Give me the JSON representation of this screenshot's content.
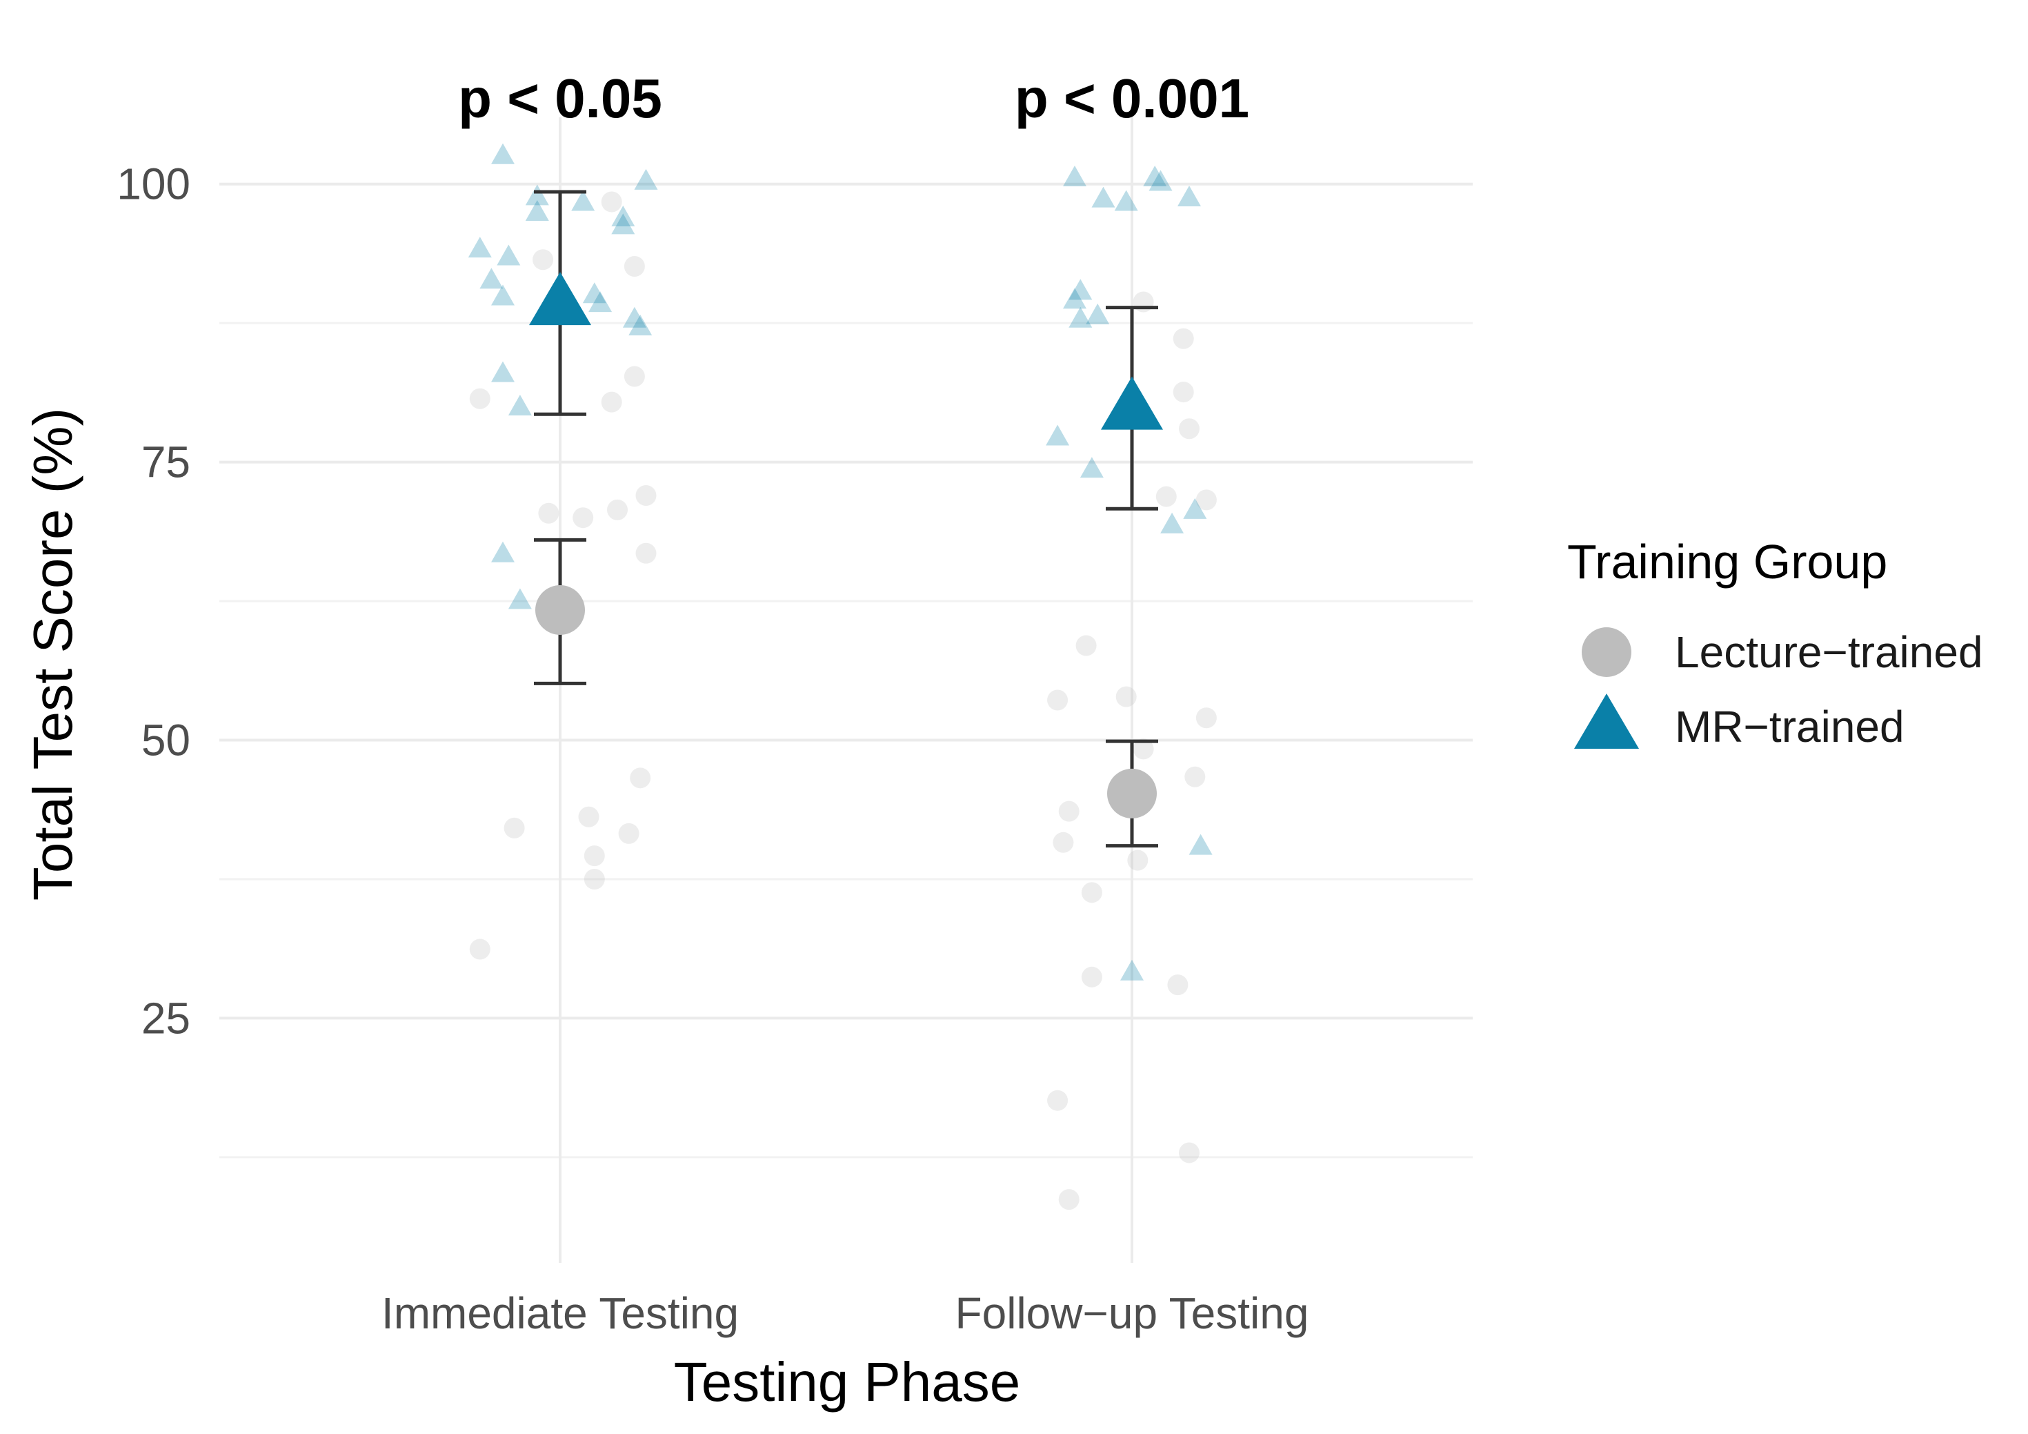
{
  "chart_data": {
    "type": "scatter",
    "title": "",
    "xlabel": "Testing Phase",
    "ylabel": "Total Test Score (%)",
    "categories": [
      "Immediate Testing",
      "Follow−up Testing"
    ],
    "ylim": [
      3,
      106
    ],
    "yticks": [
      25,
      50,
      75,
      100
    ],
    "grid": true,
    "annotations": [
      {
        "category": "Immediate Testing",
        "text": "p < 0.05"
      },
      {
        "category": "Follow−up Testing",
        "text": "p < 0.001"
      }
    ],
    "legend": {
      "title": "Training Group",
      "position": "right",
      "entries": [
        {
          "name": "Lecture−trained",
          "shape": "circle"
        },
        {
          "name": "MR−trained",
          "shape": "triangle"
        }
      ]
    },
    "series": [
      {
        "name": "Lecture−trained",
        "shape": "circle",
        "color": "#bdbdbd",
        "summary": [
          {
            "category": "Immediate Testing",
            "mean": 61.7,
            "lower": 55.1,
            "upper": 68.0
          },
          {
            "category": "Follow−up Testing",
            "mean": 45.2,
            "lower": 40.5,
            "upper": 49.9
          }
        ],
        "points": [
          {
            "category": "Immediate Testing",
            "offset": -0.14,
            "y": 80.7
          },
          {
            "category": "Immediate Testing",
            "offset": 0.09,
            "y": 80.4
          },
          {
            "category": "Immediate Testing",
            "offset": 0.13,
            "y": 82.7
          },
          {
            "category": "Immediate Testing",
            "offset": 0.13,
            "y": 92.6
          },
          {
            "category": "Immediate Testing",
            "offset": -0.03,
            "y": 93.2
          },
          {
            "category": "Immediate Testing",
            "offset": 0.09,
            "y": 98.4
          },
          {
            "category": "Immediate Testing",
            "offset": -0.02,
            "y": 70.4
          },
          {
            "category": "Immediate Testing",
            "offset": 0.04,
            "y": 70.0
          },
          {
            "category": "Immediate Testing",
            "offset": 0.1,
            "y": 70.7
          },
          {
            "category": "Immediate Testing",
            "offset": 0.15,
            "y": 72.0
          },
          {
            "category": "Immediate Testing",
            "offset": 0.15,
            "y": 66.8
          },
          {
            "category": "Immediate Testing",
            "offset": -0.08,
            "y": 42.1
          },
          {
            "category": "Immediate Testing",
            "offset": 0.05,
            "y": 43.1
          },
          {
            "category": "Immediate Testing",
            "offset": 0.12,
            "y": 41.6
          },
          {
            "category": "Immediate Testing",
            "offset": 0.14,
            "y": 46.6
          },
          {
            "category": "Immediate Testing",
            "offset": 0.06,
            "y": 39.6
          },
          {
            "category": "Immediate Testing",
            "offset": 0.06,
            "y": 37.5
          },
          {
            "category": "Immediate Testing",
            "offset": -0.14,
            "y": 31.2
          },
          {
            "category": "Follow−up Testing",
            "offset": 0.02,
            "y": 89.4
          },
          {
            "category": "Follow−up Testing",
            "offset": 0.09,
            "y": 86.1
          },
          {
            "category": "Follow−up Testing",
            "offset": 0.09,
            "y": 81.3
          },
          {
            "category": "Follow−up Testing",
            "offset": 0.1,
            "y": 78.0
          },
          {
            "category": "Follow−up Testing",
            "offset": 0.06,
            "y": 71.9
          },
          {
            "category": "Follow−up Testing",
            "offset": 0.13,
            "y": 71.6
          },
          {
            "category": "Follow−up Testing",
            "offset": -0.08,
            "y": 58.5
          },
          {
            "category": "Follow−up Testing",
            "offset": -0.13,
            "y": 53.6
          },
          {
            "category": "Follow−up Testing",
            "offset": -0.01,
            "y": 53.9
          },
          {
            "category": "Follow−up Testing",
            "offset": 0.13,
            "y": 52.0
          },
          {
            "category": "Follow−up Testing",
            "offset": 0.11,
            "y": 46.7
          },
          {
            "category": "Follow−up Testing",
            "offset": 0.02,
            "y": 49.2
          },
          {
            "category": "Follow−up Testing",
            "offset": -0.11,
            "y": 43.6
          },
          {
            "category": "Follow−up Testing",
            "offset": -0.12,
            "y": 40.8
          },
          {
            "category": "Follow−up Testing",
            "offset": 0.01,
            "y": 39.2
          },
          {
            "category": "Follow−up Testing",
            "offset": -0.07,
            "y": 36.3
          },
          {
            "category": "Follow−up Testing",
            "offset": -0.07,
            "y": 28.7
          },
          {
            "category": "Follow−up Testing",
            "offset": 0.08,
            "y": 28.0
          },
          {
            "category": "Follow−up Testing",
            "offset": -0.13,
            "y": 17.6
          },
          {
            "category": "Follow−up Testing",
            "offset": 0.1,
            "y": 12.9
          },
          {
            "category": "Follow−up Testing",
            "offset": -0.11,
            "y": 8.7
          }
        ]
      },
      {
        "name": "MR−trained",
        "shape": "triangle",
        "color": "#0a80a8",
        "summary": [
          {
            "category": "Immediate Testing",
            "mean": 89.3,
            "lower": 79.3,
            "upper": 99.3
          },
          {
            "category": "Follow−up Testing",
            "mean": 79.9,
            "lower": 70.8,
            "upper": 88.9
          }
        ],
        "points": [
          {
            "category": "Immediate Testing",
            "offset": -0.1,
            "y": 102.6
          },
          {
            "category": "Immediate Testing",
            "offset": 0.15,
            "y": 100.3
          },
          {
            "category": "Immediate Testing",
            "offset": -0.04,
            "y": 98.9
          },
          {
            "category": "Immediate Testing",
            "offset": -0.04,
            "y": 97.5
          },
          {
            "category": "Immediate Testing",
            "offset": 0.04,
            "y": 98.4
          },
          {
            "category": "Immediate Testing",
            "offset": 0.11,
            "y": 97.0
          },
          {
            "category": "Immediate Testing",
            "offset": 0.11,
            "y": 96.3
          },
          {
            "category": "Immediate Testing",
            "offset": -0.14,
            "y": 94.2
          },
          {
            "category": "Immediate Testing",
            "offset": -0.09,
            "y": 93.5
          },
          {
            "category": "Immediate Testing",
            "offset": -0.12,
            "y": 91.4
          },
          {
            "category": "Immediate Testing",
            "offset": -0.1,
            "y": 89.9
          },
          {
            "category": "Immediate Testing",
            "offset": 0.06,
            "y": 90.1
          },
          {
            "category": "Immediate Testing",
            "offset": 0.07,
            "y": 89.3
          },
          {
            "category": "Immediate Testing",
            "offset": 0.13,
            "y": 87.9
          },
          {
            "category": "Immediate Testing",
            "offset": 0.14,
            "y": 87.2
          },
          {
            "category": "Immediate Testing",
            "offset": -0.1,
            "y": 83.0
          },
          {
            "category": "Immediate Testing",
            "offset": -0.07,
            "y": 80.0
          },
          {
            "category": "Immediate Testing",
            "offset": -0.1,
            "y": 66.8
          },
          {
            "category": "Immediate Testing",
            "offset": -0.07,
            "y": 62.6
          },
          {
            "category": "Follow−up Testing",
            "offset": -0.1,
            "y": 100.6
          },
          {
            "category": "Follow−up Testing",
            "offset": 0.04,
            "y": 100.6
          },
          {
            "category": "Follow−up Testing",
            "offset": 0.05,
            "y": 100.2
          },
          {
            "category": "Follow−up Testing",
            "offset": -0.05,
            "y": 98.7
          },
          {
            "category": "Follow−up Testing",
            "offset": -0.01,
            "y": 98.4
          },
          {
            "category": "Follow−up Testing",
            "offset": 0.1,
            "y": 98.8
          },
          {
            "category": "Follow−up Testing",
            "offset": -0.09,
            "y": 90.4
          },
          {
            "category": "Follow−up Testing",
            "offset": -0.1,
            "y": 89.6
          },
          {
            "category": "Follow−up Testing",
            "offset": -0.06,
            "y": 88.2
          },
          {
            "category": "Follow−up Testing",
            "offset": -0.09,
            "y": 87.9
          },
          {
            "category": "Follow−up Testing",
            "offset": -0.13,
            "y": 77.3
          },
          {
            "category": "Follow−up Testing",
            "offset": -0.07,
            "y": 74.4
          },
          {
            "category": "Follow−up Testing",
            "offset": 0.11,
            "y": 70.7
          },
          {
            "category": "Follow−up Testing",
            "offset": 0.07,
            "y": 69.4
          },
          {
            "category": "Follow−up Testing",
            "offset": 0.12,
            "y": 40.5
          },
          {
            "category": "Follow−up Testing",
            "offset": 0.0,
            "y": 29.2
          }
        ]
      }
    ]
  }
}
